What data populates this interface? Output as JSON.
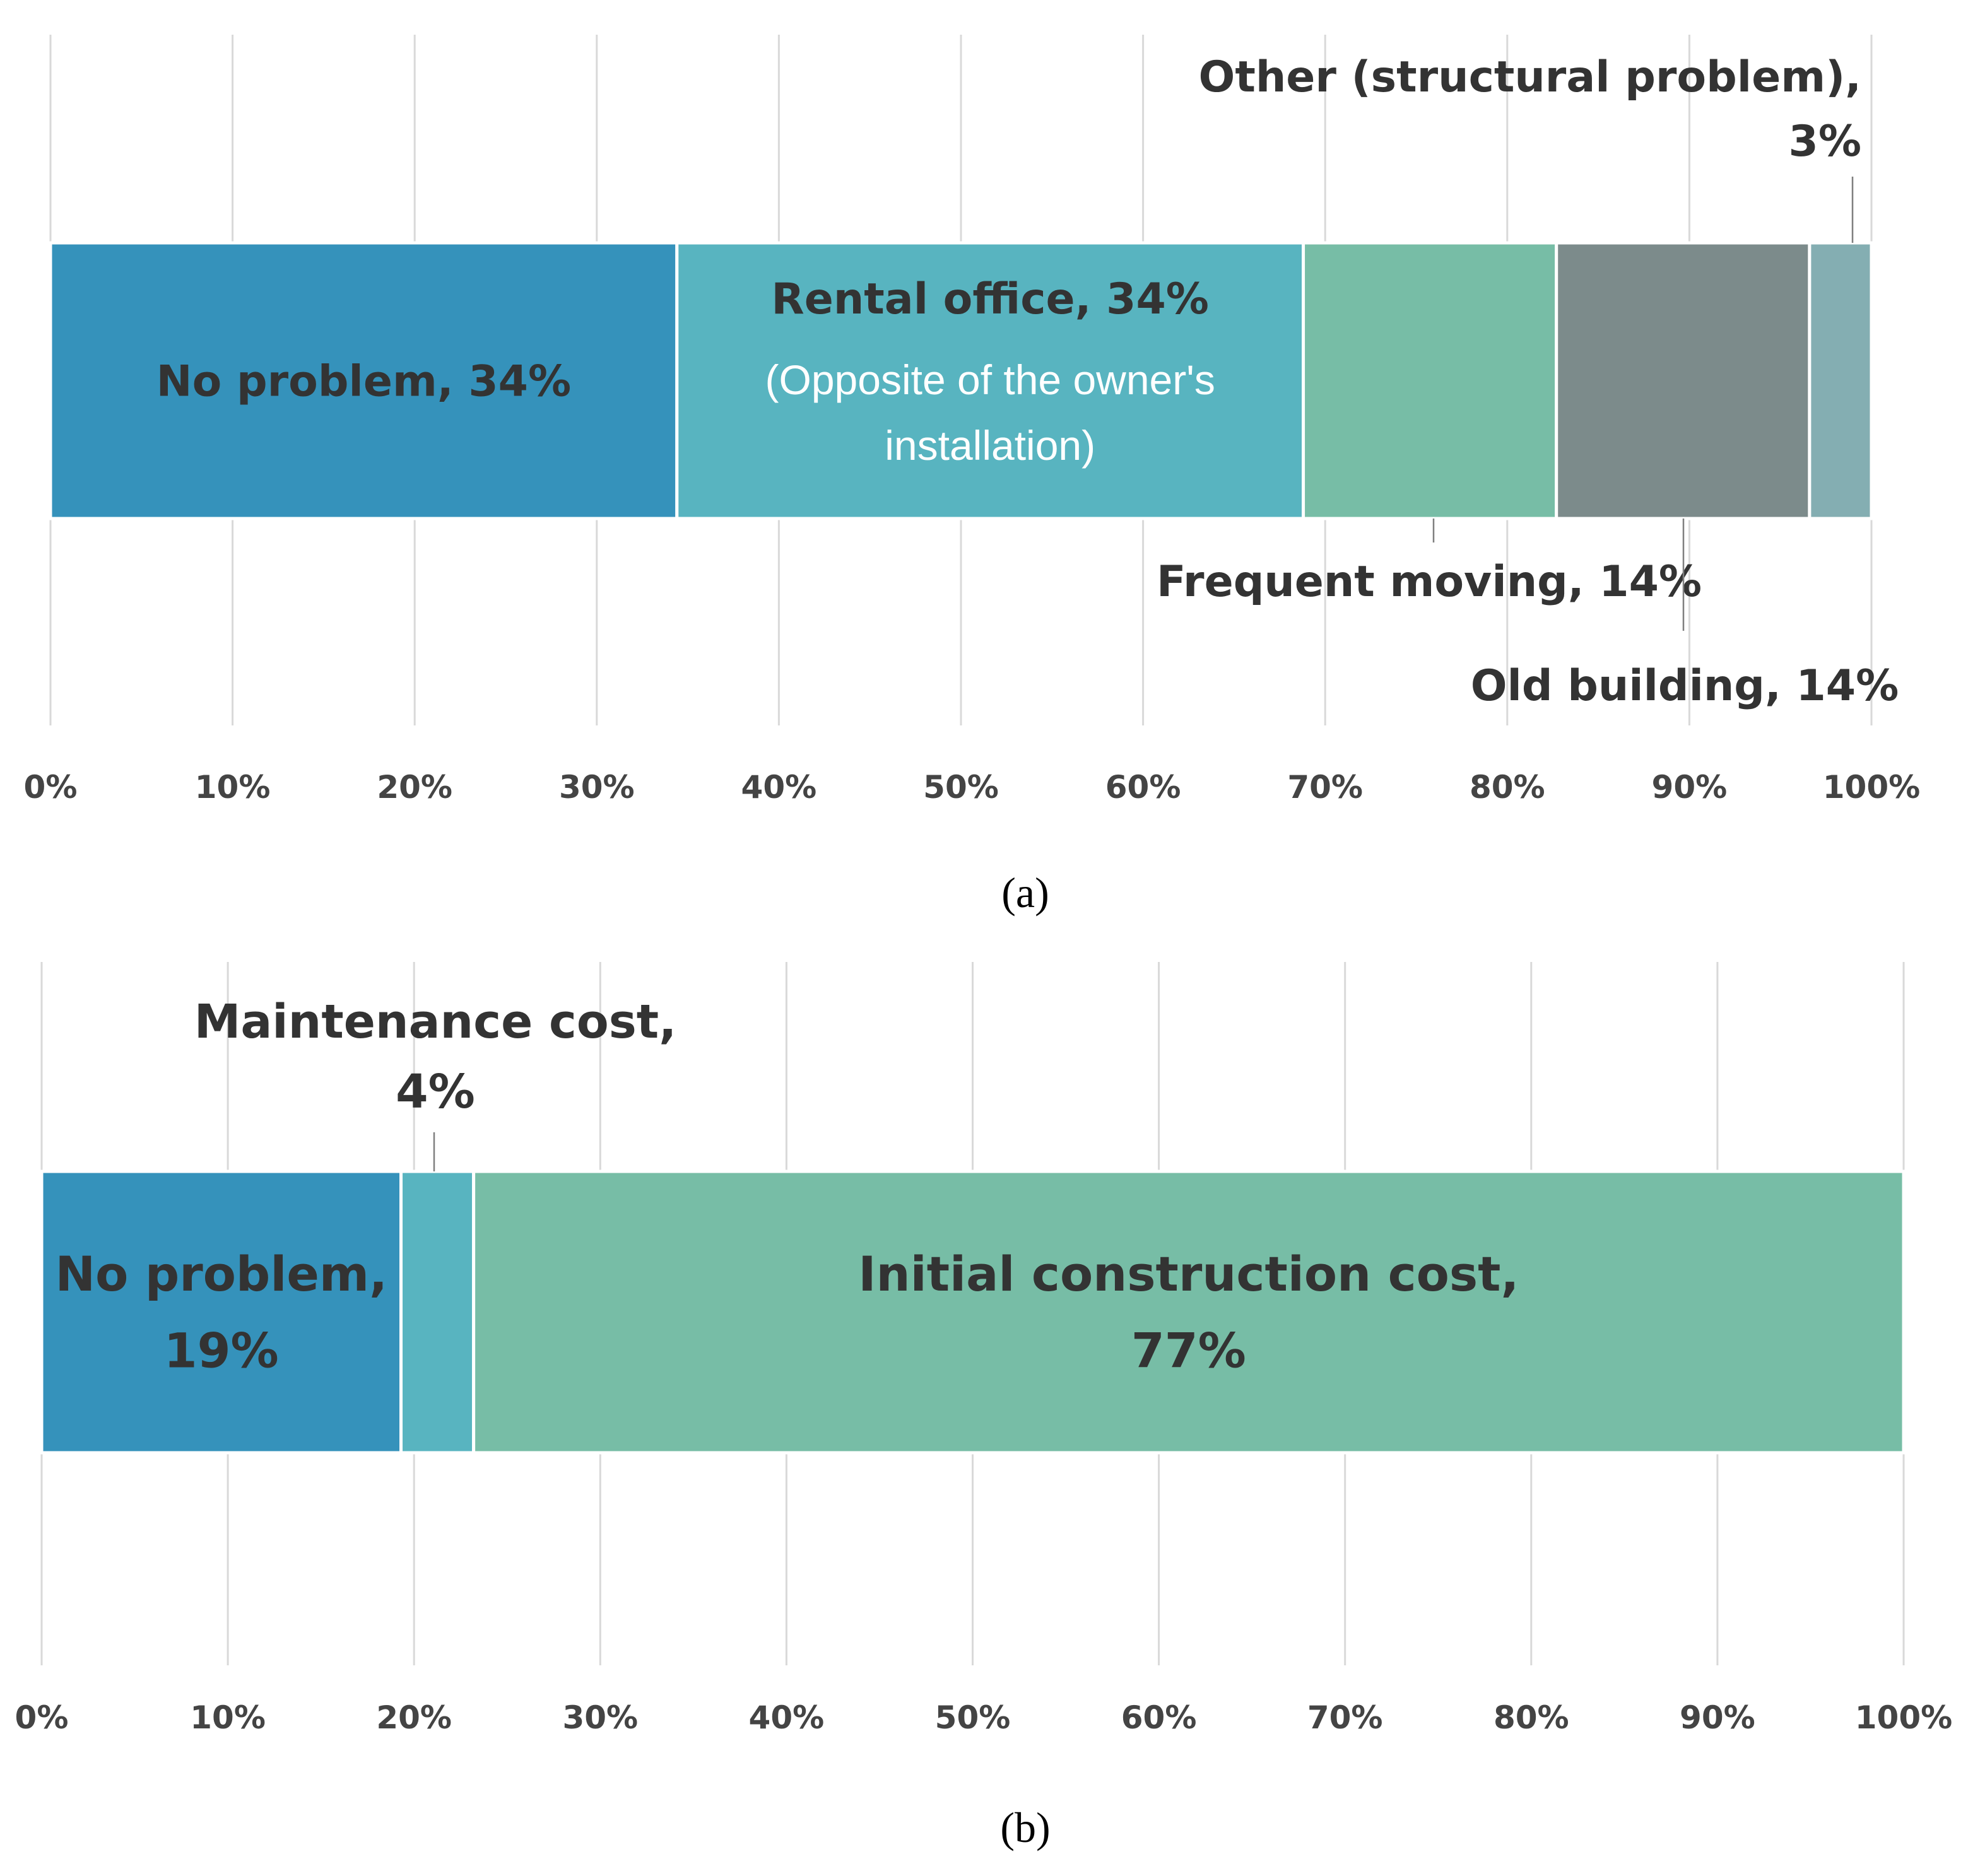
{
  "chart_data": [
    {
      "type": "bar",
      "orientation": "horizontal-stacked-100",
      "panel_label": "(a)",
      "xlim": [
        0,
        100
      ],
      "x_ticks": [
        "0%",
        "10%",
        "20%",
        "30%",
        "40%",
        "50%",
        "60%",
        "70%",
        "80%",
        "90%",
        "100%"
      ],
      "grid": true,
      "series": [
        {
          "name": "No problem",
          "value": 34.4,
          "color": "#3592bb",
          "label_lines": [
            "No problem, 34%"
          ]
        },
        {
          "name": "Rental office",
          "value": 34.4,
          "color": "#58b4c0",
          "label_lines": [
            "Rental office, 34%"
          ],
          "sub_lines": [
            "(Opposite of the owner's",
            "installation)"
          ]
        },
        {
          "name": "Frequent moving",
          "value": 13.9,
          "color": "#77bda6",
          "callout": "Frequent moving, 14%"
        },
        {
          "name": "Old building",
          "value": 13.9,
          "color": "#7c8b8b",
          "callout": "Old building, 14%"
        },
        {
          "name": "Other (structural problem)",
          "value": 3.4,
          "color": "#84aeb2",
          "callout_lines": [
            "Other (structural problem),",
            "3%"
          ]
        }
      ]
    },
    {
      "type": "bar",
      "orientation": "horizontal-stacked-100",
      "panel_label": "(b)",
      "xlim": [
        0,
        100
      ],
      "x_ticks": [
        "0%",
        "10%",
        "20%",
        "30%",
        "40%",
        "50%",
        "60%",
        "70%",
        "80%",
        "90%",
        "100%"
      ],
      "grid": true,
      "series": [
        {
          "name": "No problem",
          "value": 19.3,
          "color": "#3592bb",
          "label_lines": [
            "No problem,",
            "19%"
          ]
        },
        {
          "name": "Maintenance cost",
          "value": 3.9,
          "color": "#58b4c0",
          "callout_lines": [
            "Maintenance cost,",
            "4%"
          ]
        },
        {
          "name": "Initial construction cost",
          "value": 76.8,
          "color": "#77bda6",
          "label_lines": [
            "Initial construction cost,",
            "77%"
          ]
        }
      ]
    }
  ]
}
